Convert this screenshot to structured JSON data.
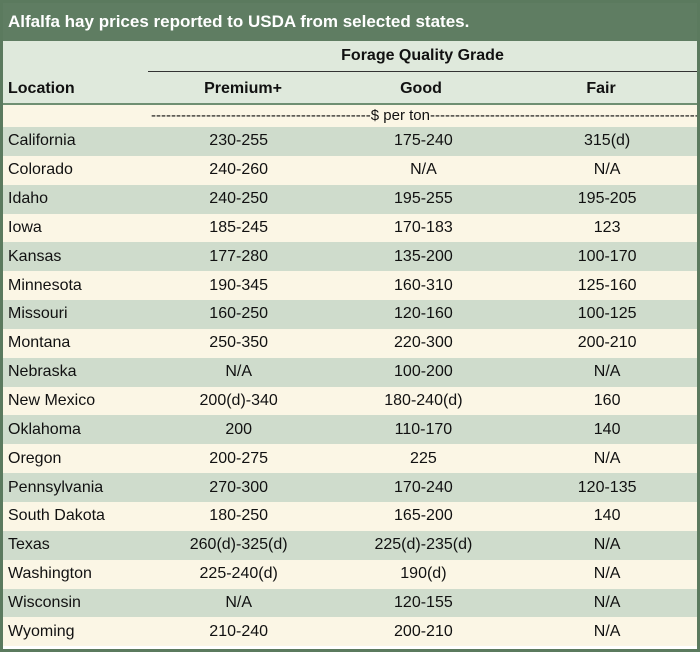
{
  "title": "Alfalfa hay prices reported to USDA from selected states.",
  "group_header": "Forage Quality Grade",
  "columns": {
    "location": "Location",
    "premium": "Premium+",
    "good": "Good",
    "fair": "Fair"
  },
  "units": "--------------------------------------------$ per ton--------------------------------------------------------------------------",
  "rows": [
    {
      "location": "California",
      "premium": "230-255",
      "good": "175-240",
      "fair": "315(d)"
    },
    {
      "location": "Colorado",
      "premium": "240-260",
      "good": "N/A",
      "fair": "N/A"
    },
    {
      "location": "Idaho",
      "premium": "240-250",
      "good": "195-255",
      "fair": "195-205"
    },
    {
      "location": "Iowa",
      "premium": "185-245",
      "good": "170-183",
      "fair": "123"
    },
    {
      "location": "Kansas",
      "premium": "177-280",
      "good": "135-200",
      "fair": "100-170"
    },
    {
      "location": "Minnesota",
      "premium": "190-345",
      "good": "160-310",
      "fair": "125-160"
    },
    {
      "location": "Missouri",
      "premium": "160-250",
      "good": "120-160",
      "fair": "100-125"
    },
    {
      "location": "Montana",
      "premium": "250-350",
      "good": "220-300",
      "fair": "200-210"
    },
    {
      "location": "Nebraska",
      "premium": "N/A",
      "good": "100-200",
      "fair": "N/A"
    },
    {
      "location": "New Mexico",
      "premium": "200(d)-340",
      "good": "180-240(d)",
      "fair": "160"
    },
    {
      "location": "Oklahoma",
      "premium": "200",
      "good": "110-170",
      "fair": "140"
    },
    {
      "location": "Oregon",
      "premium": "200-275",
      "good": "225",
      "fair": "N/A"
    },
    {
      "location": "Pennsylvania",
      "premium": "270-300",
      "good": "170-240",
      "fair": "120-135"
    },
    {
      "location": "South Dakota",
      "premium": "180-250",
      "good": "165-200",
      "fair": "140"
    },
    {
      "location": "Texas",
      "premium": "260(d)-325(d)",
      "good": "225(d)-235(d)",
      "fair": "N/A"
    },
    {
      "location": "Washington",
      "premium": "225-240(d)",
      "good": "190(d)",
      "fair": "N/A"
    },
    {
      "location": "Wisconsin",
      "premium": "N/A",
      "good": "120-155",
      "fair": "N/A"
    },
    {
      "location": "Wyoming",
      "premium": "210-240",
      "good": "200-210",
      "fair": "N/A"
    }
  ],
  "colors": {
    "title_bg": "#5f7d62",
    "header_bg": "#dfe9dc",
    "row_green": "#cfdccc",
    "row_cream": "#fbf6e5"
  }
}
